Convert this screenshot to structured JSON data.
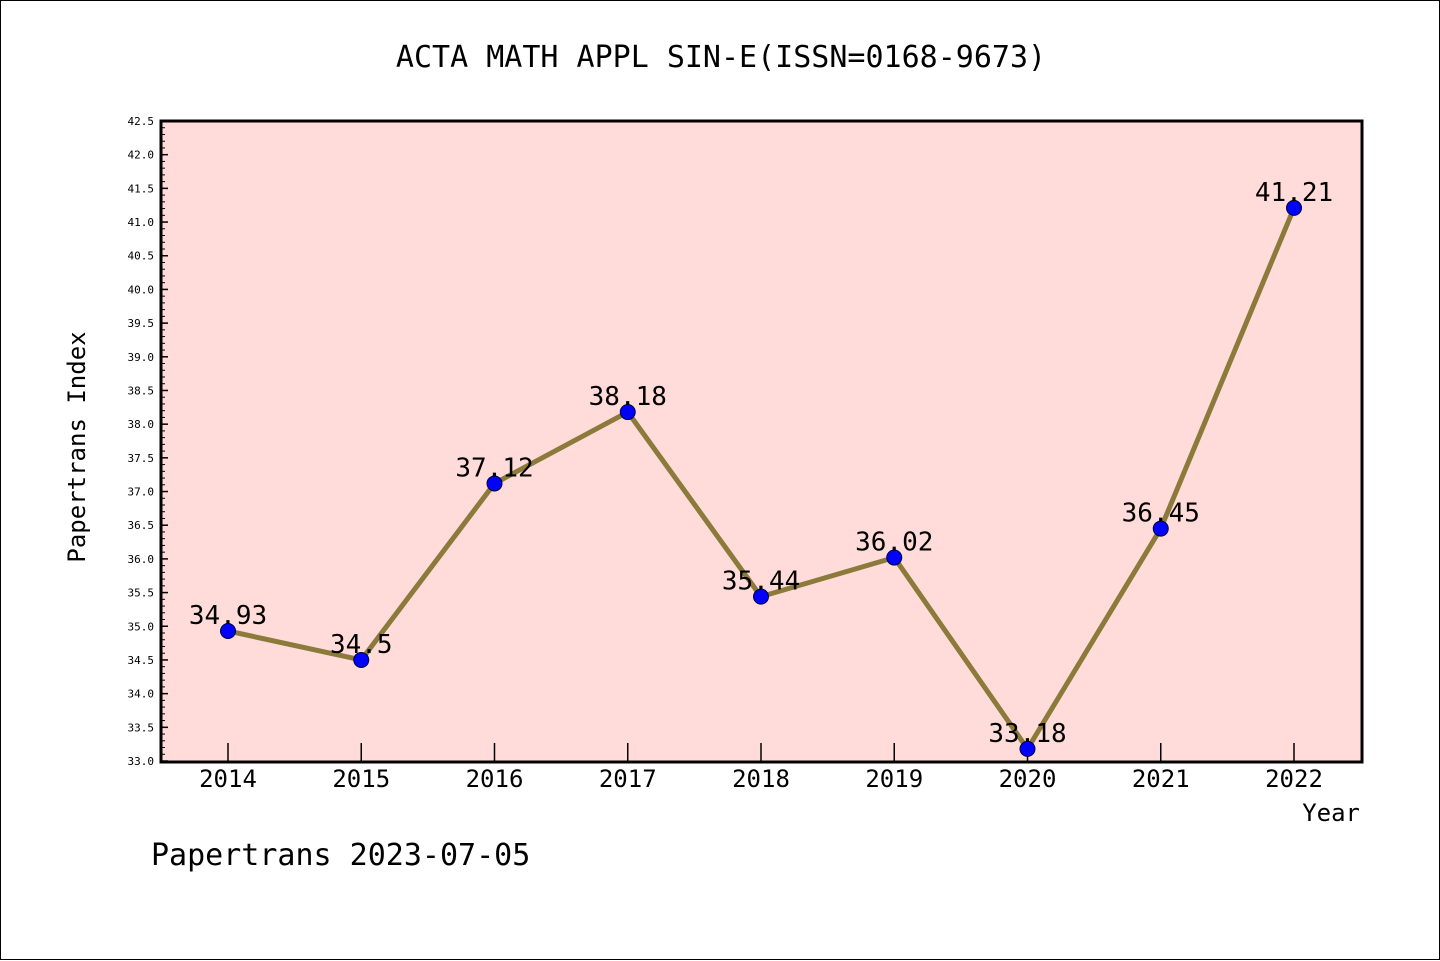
{
  "chart_data": {
    "type": "line",
    "title": "ACTA MATH APPL SIN-E(ISSN=0168-9673)",
    "xlabel": "Year",
    "ylabel": "Papertrans Index",
    "categories": [
      "2014",
      "2015",
      "2016",
      "2017",
      "2018",
      "2019",
      "2020",
      "2021",
      "2022"
    ],
    "series": [
      {
        "values": [
          34.93,
          34.5,
          37.12,
          38.18,
          35.44,
          36.02,
          33.18,
          36.45,
          41.21
        ]
      }
    ],
    "data_labels": [
      "34.93",
      "34.5",
      "37.12",
      "38.18",
      "35.44",
      "36.02",
      "33.18",
      "36.45",
      "41.21"
    ],
    "ylim": [
      33.0,
      42.5
    ],
    "yticks": [
      "33.0",
      "33.5",
      "34.0",
      "34.5",
      "35.0",
      "35.5",
      "36.0",
      "36.5",
      "37.0",
      "37.5",
      "38.0",
      "38.5",
      "39.0",
      "39.5",
      "40.0",
      "40.5",
      "41.0",
      "41.5",
      "42.0",
      "42.5"
    ],
    "grid": false,
    "legend": "none",
    "colors": {
      "plot_background": "#FFDCDA",
      "line": "#8B7A3A",
      "marker": "#0000FF",
      "axes": "#000000"
    },
    "footer": "Papertrans 2023-07-05"
  }
}
